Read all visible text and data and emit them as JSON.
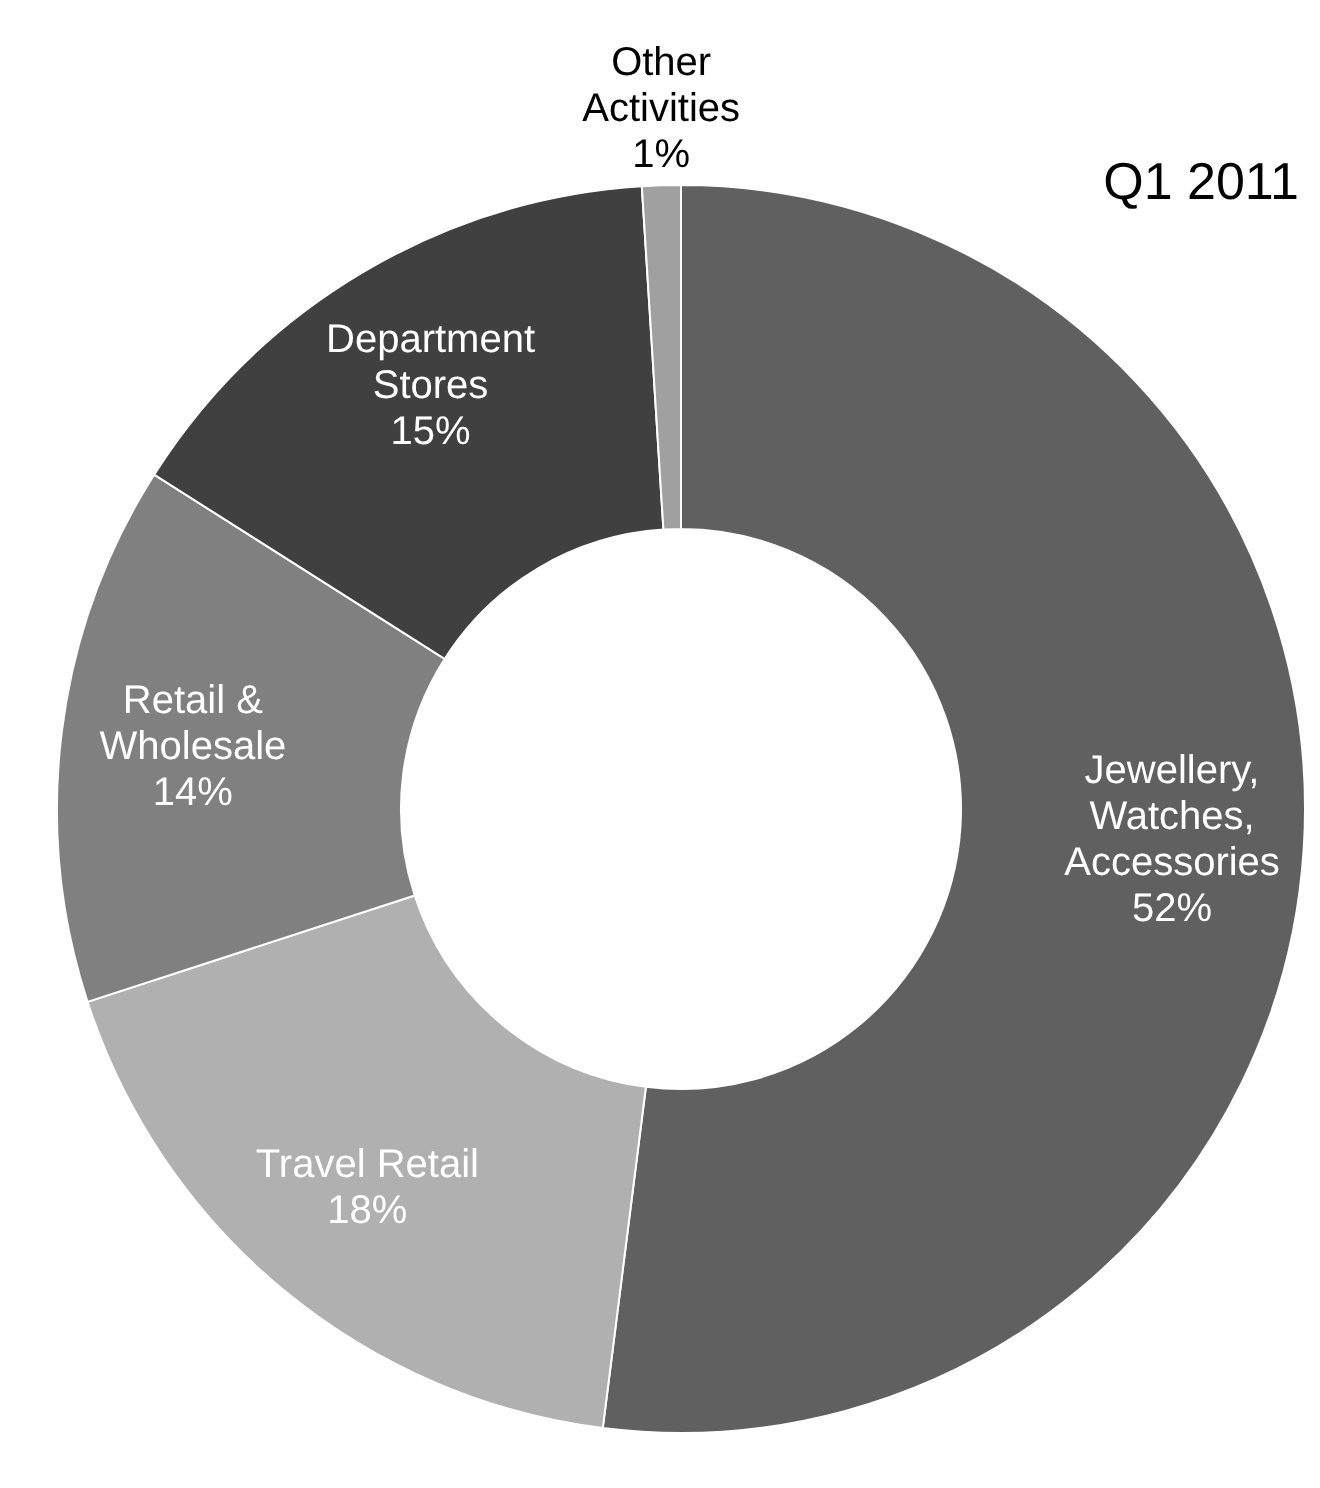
{
  "chart_data": {
    "type": "donut",
    "title": "Q1 2011",
    "categories": [
      "Jewellery, Watches, Accessories",
      "Travel Retail",
      "Retail & Wholesale",
      "Department Stores",
      "Other Activities"
    ],
    "values": [
      52,
      18,
      14,
      15,
      1
    ],
    "colors": [
      "#606060",
      "#b0b0b0",
      "#808080",
      "#404040",
      "#a0a0a0"
    ],
    "value_labels": [
      "52%",
      "18%",
      "14%",
      "15%",
      "1%"
    ]
  }
}
